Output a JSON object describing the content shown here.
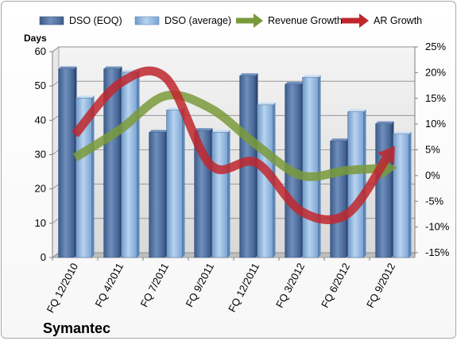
{
  "chart_data": {
    "type": "bar",
    "title": "",
    "footer_label": "Symantec",
    "categories": [
      "FQ 12/2010",
      "FQ 4/2011",
      "FQ 7/2011",
      "FQ 9/2011",
      "FQ 12/2011",
      "FQ 3/2012",
      "FQ 6/2012",
      "FQ 9/2012"
    ],
    "ylabel_left": "Days",
    "ylim_left": [
      0,
      60
    ],
    "yticks_left": [
      "0",
      "10",
      "20",
      "30",
      "40",
      "50",
      "60"
    ],
    "ylim_right": [
      -15,
      25
    ],
    "yticks_right": [
      "-15%",
      "-10%",
      "-5%",
      "0%",
      "5%",
      "10%",
      "15%",
      "20%",
      "25%"
    ],
    "grid": true,
    "legend_position": "top",
    "series": [
      {
        "name": "DSO (EOQ)",
        "kind": "bar",
        "axis": "left",
        "color": "#4f6f9f",
        "values": [
          55,
          55,
          36.5,
          37,
          53,
          50.5,
          34,
          39
        ]
      },
      {
        "name": "DSO (average)",
        "kind": "bar",
        "axis": "left",
        "color": "#8fb4dc",
        "values": [
          46.5,
          54,
          43,
          36.5,
          44.5,
          52.5,
          42.5,
          36
        ]
      },
      {
        "name": "Revenue Growth",
        "kind": "line",
        "axis": "right",
        "color": "#7a9a3a",
        "values": [
          3.5,
          9,
          15.5,
          13,
          6,
          0,
          1,
          1.5
        ]
      },
      {
        "name": "AR Growth",
        "kind": "line",
        "axis": "right",
        "color": "#c0272d",
        "values": [
          8,
          18,
          19,
          2,
          2.5,
          -7,
          -7.5,
          5
        ]
      }
    ]
  }
}
